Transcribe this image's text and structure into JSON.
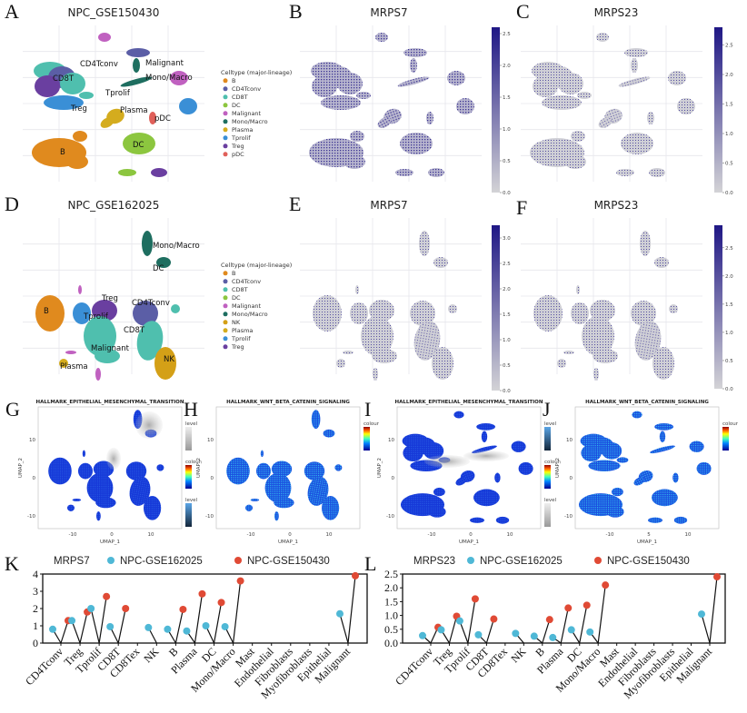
{
  "panels": {
    "A": {
      "letter": "A",
      "title": "NPC_GSE150430",
      "legend_title": "Celltype (major-lineage)",
      "legend": [
        "B",
        "CD4Tconv",
        "CD8T",
        "DC",
        "Malignant",
        "Mono/Macro",
        "Plasma",
        "Tprolif",
        "Treg",
        "pDC"
      ],
      "cluster_labels": [
        "CD4Tconv",
        "CD8T",
        "Malignant",
        "Mono/Macro",
        "Tprolif",
        "Treg",
        "Plasma",
        "pDC",
        "DC",
        "B"
      ]
    },
    "B": {
      "letter": "B",
      "title": "MRPS7",
      "colorbar_ticks": [
        "0.0",
        "0.5",
        "1.0",
        "1.5",
        "2.0",
        "2.5"
      ],
      "colorbar_max": 2.6
    },
    "C": {
      "letter": "C",
      "title": "MRPS23",
      "colorbar_ticks": [
        "0.0",
        "0.5",
        "1.0",
        "1.5",
        "2.0",
        "2.5"
      ],
      "colorbar_max": 2.8
    },
    "D": {
      "letter": "D",
      "title": "NPC_GSE162025",
      "legend_title": "Celltype (major-lineage)",
      "legend": [
        "B",
        "CD4Tconv",
        "CD8T",
        "DC",
        "Malignant",
        "Mono/Macro",
        "NK",
        "Plasma",
        "Tprolif",
        "Treg"
      ],
      "cluster_labels": [
        "Mono/Macro",
        "DC",
        "Treg",
        "CD4Tconv",
        "B",
        "Tprolif",
        "CD8T",
        "Malignant",
        "NK",
        "Plasma"
      ]
    },
    "E": {
      "letter": "E",
      "title": "MRPS7",
      "colorbar_ticks": [
        "0.0",
        "0.5",
        "1.0",
        "1.5",
        "2.0",
        "2.5",
        "3.0"
      ],
      "colorbar_max": 3.25
    },
    "F": {
      "letter": "F",
      "title": "MRPS23",
      "colorbar_ticks": [
        "0.0",
        "0.5",
        "1.0",
        "1.5",
        "2.0",
        "2.5"
      ],
      "colorbar_max": 2.9
    },
    "G": {
      "letter": "G",
      "title": "HALLMARK_EPITHELIAL_MESENCHYMAL_TRANSITION",
      "xlabel": "UMAP_1",
      "ylabel": "UMAP_2",
      "xticks": [
        "-10",
        "0",
        "10"
      ],
      "yticks": [
        "10",
        "0",
        "-10"
      ],
      "legend_titles": [
        "level",
        "colour",
        "level"
      ]
    },
    "H": {
      "letter": "H",
      "title": "HALLMARK_WNT_BETA_CATENIN_SIGNALING",
      "xlabel": "UMAP_1",
      "ylabel": "UMAP_2",
      "xticks": [
        "-10",
        "0",
        "10"
      ],
      "yticks": [
        "10",
        "0",
        "-10"
      ],
      "legend_titles": [
        "colour"
      ]
    },
    "I": {
      "letter": "I",
      "title": "HALLMARK_EPITHELIAL_MESENCHYMAL_TRANSITION",
      "xlabel": "UMAP_1",
      "ylabel": "UMAP_2",
      "xticks": [
        "-10",
        "0",
        "10"
      ],
      "yticks": [
        "10",
        "0",
        "-10"
      ],
      "legend_titles": [
        "level",
        "colour",
        "level"
      ]
    },
    "J": {
      "letter": "J",
      "title": "HALLMARK_WNT_BETA_CATENIN_SIGNALING",
      "xlabel": "UMAP_1",
      "ylabel": "UMAP_2",
      "xticks": [
        "-10",
        "5",
        "10"
      ],
      "yticks": [
        "10",
        "0",
        "-10"
      ],
      "legend_titles": [
        "colour"
      ]
    }
  },
  "colors": {
    "B": "#e08a1e",
    "CD4Tconv": "#5b5ea6",
    "CD8T": "#4fbfae",
    "DC": "#8cc63f",
    "Malignant": "#c061c0",
    "Mono/Macro": "#1e6e60",
    "Plasma": "#d4ac1e",
    "Tprolif": "#3a8fd6",
    "Treg": "#6a3fa0",
    "pDC": "#e0605a",
    "NK": "#d4a017",
    "expr_low": "#d3d3d6",
    "expr_high": "#1f1785",
    "cyan": "#4fb8d6",
    "red": "#e04a35"
  },
  "chart_data": [
    {
      "panel": "K",
      "letter": "K",
      "type": "lollipop",
      "title": "MRPS7",
      "ylim": [
        0,
        4
      ],
      "yticks": [
        "0",
        "1",
        "2",
        "3",
        "4"
      ],
      "categories": [
        "CD4Tconv",
        "Treg",
        "Tprolif",
        "CD8T",
        "CD8Tex",
        "NK",
        "B",
        "Plasma",
        "DC",
        "Mono/Macro",
        "Mast",
        "Endothelial",
        "Fibroblasts",
        "Myofibroblasts",
        "Epithelial",
        "Malignant"
      ],
      "series": [
        {
          "name": "NPC-GSE162025",
          "color": "#4fb8d6",
          "values": [
            0.8,
            1.3,
            2.0,
            0.95,
            null,
            0.9,
            0.8,
            0.7,
            1.0,
            0.95,
            null,
            null,
            null,
            null,
            null,
            1.7
          ]
        },
        {
          "name": "NPC-GSE150430",
          "color": "#e04a35",
          "values": [
            1.3,
            1.8,
            2.7,
            2.0,
            null,
            null,
            1.95,
            2.85,
            2.35,
            3.6,
            null,
            null,
            null,
            null,
            null,
            3.9
          ]
        }
      ]
    },
    {
      "panel": "L",
      "letter": "L",
      "type": "lollipop",
      "title": "MRPS23",
      "ylim": [
        0,
        2.5
      ],
      "yticks": [
        "0.0",
        "0.5",
        "1.0",
        "1.5",
        "2.0",
        "2.5"
      ],
      "categories": [
        "CD4Tconv",
        "Treg",
        "Tprolif",
        "CD8T",
        "CD8Tex",
        "NK",
        "B",
        "Plasma",
        "DC",
        "Mono/Macro",
        "Mast",
        "Endothelial",
        "Fibroblasts",
        "Myofibroblasts",
        "Epithelial",
        "Malignant"
      ],
      "series": [
        {
          "name": "NPC-GSE162025",
          "color": "#4fb8d6",
          "values": [
            0.27,
            0.48,
            0.8,
            0.3,
            null,
            0.35,
            0.25,
            0.2,
            0.48,
            0.4,
            null,
            null,
            null,
            null,
            null,
            1.05
          ]
        },
        {
          "name": "NPC-GSE150430",
          "color": "#e04a35",
          "values": [
            0.57,
            0.97,
            1.6,
            0.87,
            null,
            null,
            0.85,
            1.27,
            1.37,
            2.1,
            null,
            null,
            null,
            null,
            null,
            2.4
          ]
        }
      ]
    }
  ]
}
